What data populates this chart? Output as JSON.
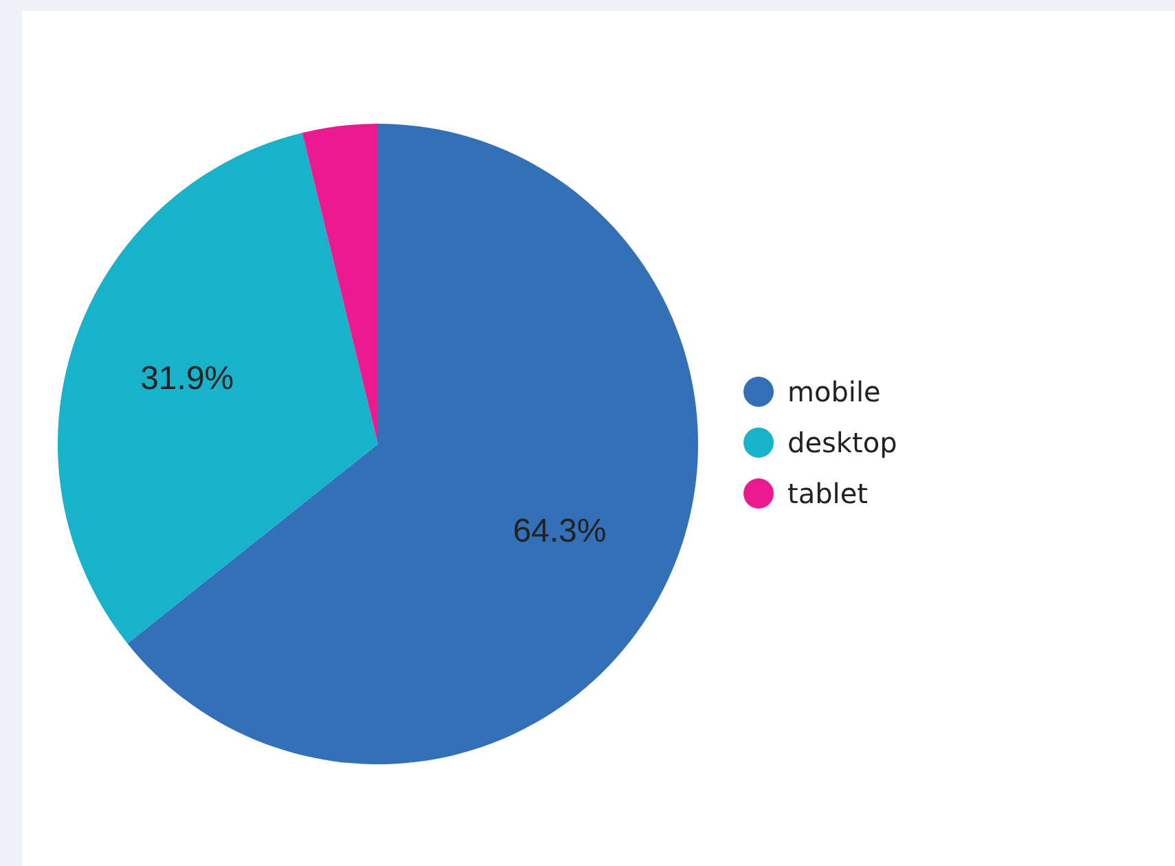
{
  "chart_data": {
    "type": "pie",
    "categories": [
      "mobile",
      "desktop",
      "tablet"
    ],
    "values": [
      64.3,
      31.9,
      3.8
    ],
    "colors": [
      "#3370b7",
      "#18b3cb",
      "#ec1a8f"
    ],
    "value_labels": [
      "64.3%",
      "31.9%",
      null
    ],
    "legend": "right"
  }
}
